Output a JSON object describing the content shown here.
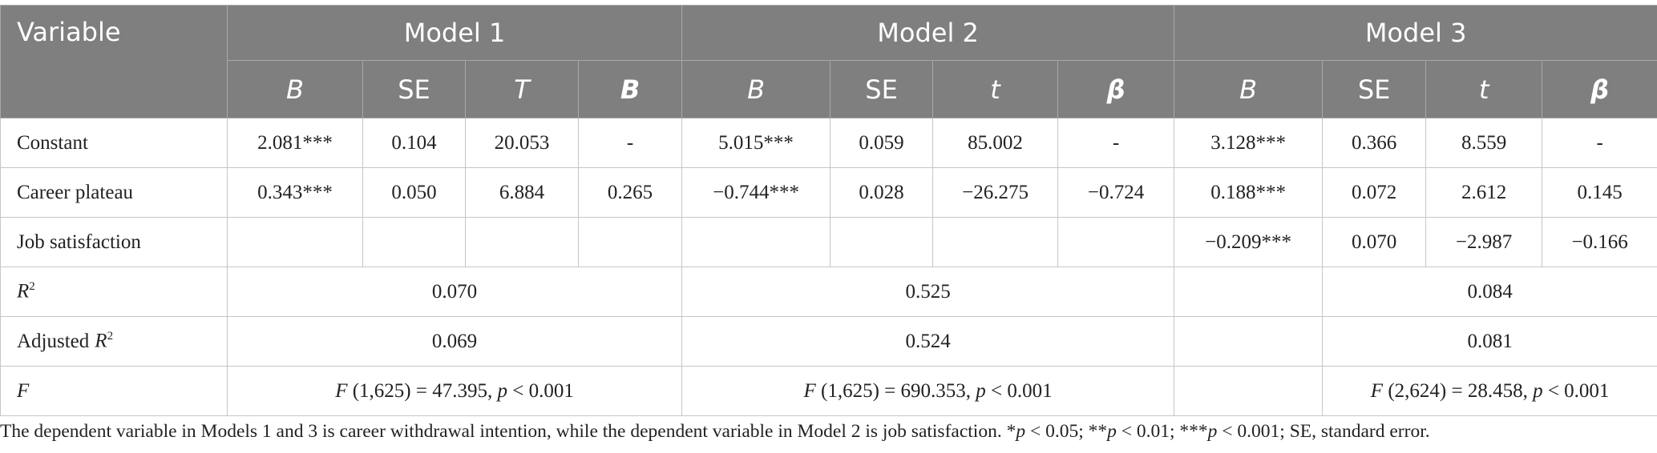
{
  "table": {
    "header": {
      "variable": "Variable",
      "models": [
        "Model 1",
        "Model 2",
        "Model 3"
      ],
      "sub": [
        [
          "B",
          "SE",
          "T",
          "B"
        ],
        [
          "B",
          "SE",
          "t",
          "β"
        ],
        [
          "B",
          "SE",
          "t",
          "β"
        ]
      ]
    },
    "rows": [
      {
        "label": "Constant",
        "m1": [
          "2.081***",
          "0.104",
          "20.053",
          "-"
        ],
        "m2": [
          "5.015***",
          "0.059",
          "85.002",
          "-"
        ],
        "m3": [
          "3.128***",
          "0.366",
          "8.559",
          "-"
        ]
      },
      {
        "label": "Career plateau",
        "m1": [
          "0.343***",
          "0.050",
          "6.884",
          "0.265"
        ],
        "m2": [
          "−0.744***",
          "0.028",
          "−26.275",
          "−0.724"
        ],
        "m3": [
          "0.188***",
          "0.072",
          "2.612",
          "0.145"
        ]
      },
      {
        "label": "Job satisfaction",
        "m3": [
          "−0.209***",
          "0.070",
          "−2.987",
          "−0.166"
        ]
      }
    ],
    "r2": {
      "symbol": "R",
      "sup": "2",
      "values": [
        "0.070",
        "0.525",
        "0.084"
      ]
    },
    "adj_r2": {
      "prefix": "Adjusted",
      "symbol": "R",
      "sup": "2",
      "values": [
        "0.069",
        "0.524",
        "0.081"
      ]
    },
    "f": {
      "symbol": "F",
      "values": [
        {
          "stat": "F",
          "args": "(1,625) = 47.395,",
          "p": "p",
          "cmp": "< 0.001"
        },
        {
          "stat": "F",
          "args": "(1,625) = 690.353,",
          "p": "p",
          "cmp": "< 0.001"
        },
        {
          "stat": "F",
          "args": "(2,624) = 28.458,",
          "p": "p",
          "cmp": "< 0.001"
        }
      ]
    }
  },
  "footnote": [
    {
      "text": "The dependent variable in Models 1 and 3 is career withdrawal intention, while the dependent variable in Model 2 is job satisfaction. *"
    },
    {
      "text": "p",
      "italic": true
    },
    {
      "text": " < 0.05; **"
    },
    {
      "text": "p",
      "italic": true
    },
    {
      "text": " < 0.01; ***"
    },
    {
      "text": "p",
      "italic": true
    },
    {
      "text": " < 0.001; SE, standard error."
    }
  ]
}
